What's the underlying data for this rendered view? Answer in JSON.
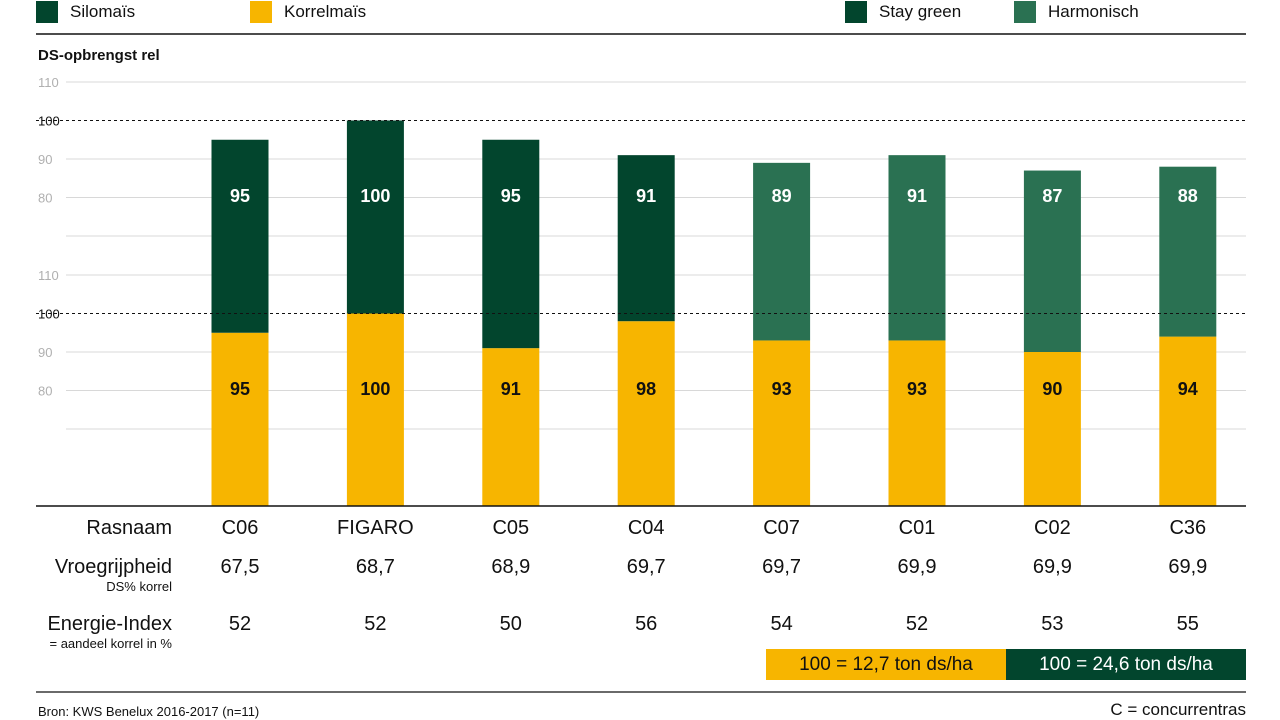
{
  "legend": {
    "items": [
      {
        "label": "Silomaïs",
        "color": "#02452d"
      },
      {
        "label": "Korrelmaïs",
        "color": "#f7b500"
      },
      {
        "label": "Stay green",
        "color": "#02452d"
      },
      {
        "label": "Harmonisch",
        "color": "#2a7152"
      }
    ]
  },
  "chart_data": {
    "type": "bar",
    "title": "DS-opbrengst rel",
    "categories": [
      "C06",
      "FIGARO",
      "C05",
      "C04",
      "C07",
      "C01",
      "C02",
      "C36"
    ],
    "series": [
      {
        "name": "Silomaïs",
        "values": [
          95,
          100,
          95,
          91,
          89,
          91,
          87,
          88
        ],
        "color_types": [
          "Stay green",
          "Stay green",
          "Stay green",
          "Stay green",
          "Harmonisch",
          "Harmonisch",
          "Harmonisch",
          "Harmonisch"
        ]
      },
      {
        "name": "Korrelmaïs",
        "values": [
          95,
          100,
          91,
          98,
          93,
          93,
          90,
          94
        ]
      }
    ],
    "ylim": [
      70,
      110
    ],
    "yticks": [
      80,
      90,
      100,
      110
    ],
    "reference_line": 100,
    "grid": true,
    "legend": "top"
  },
  "rows": [
    {
      "label": "Rasnaam",
      "sub": "",
      "values": [
        "C06",
        "FIGARO",
        "C05",
        "C04",
        "C07",
        "C01",
        "C02",
        "C36"
      ]
    },
    {
      "label": "Vroegrijpheid",
      "sub": "DS% korrel",
      "values": [
        "67,5",
        "68,7",
        "68,9",
        "69,7",
        "69,7",
        "69,9",
        "69,9",
        "69,9"
      ]
    },
    {
      "label": "Energie-Index",
      "sub": "= aandeel korrel in %",
      "values": [
        "52",
        "52",
        "50",
        "56",
        "54",
        "52",
        "53",
        "55"
      ]
    }
  ],
  "notes": {
    "korrel_ref": "100 = 12,7 ton ds/ha",
    "silo_ref": "100 = 24,6 ton ds/ha"
  },
  "footer": {
    "source": "Bron: KWS Benelux 2016-2017 (n=11)",
    "key": "C = concurrentras"
  },
  "colors": {
    "stay_green": "#02452d",
    "harmonisch": "#2a7152",
    "korrel": "#f7b500",
    "grid": "#d8d8d8",
    "tick": "#b0b0b0"
  }
}
